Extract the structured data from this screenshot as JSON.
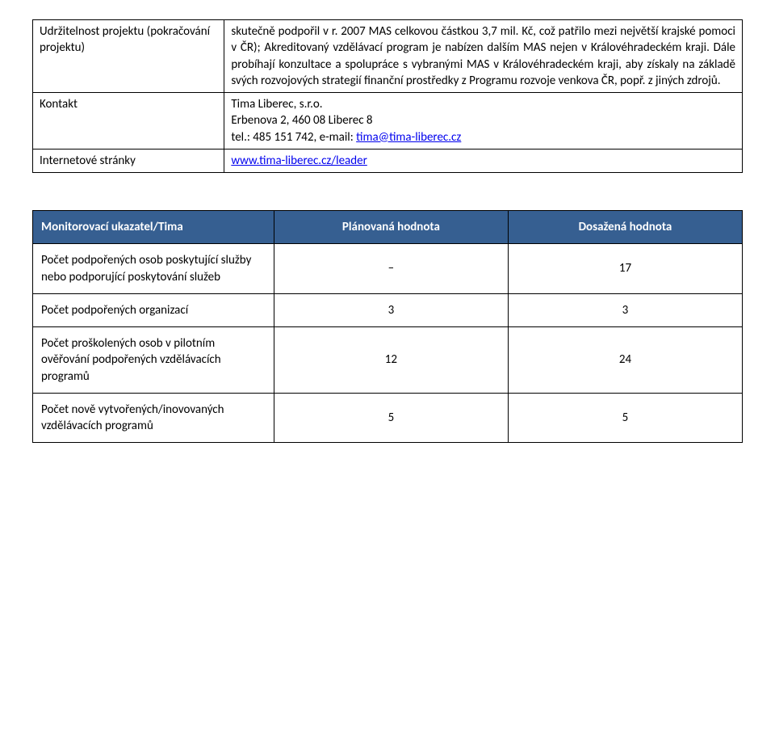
{
  "table1": {
    "rows": [
      {
        "label": "Udržitelnost projektu (pokračování projektu)",
        "value_html": "skutečně podpořil v r. 2007 MAS celkovou částkou 3,7 mil. Kč, což patřilo mezi největší krajské pomoci v ČR);\nAkreditovaný vzdělávací program je nabízen dalším MAS nejen v Královéhradeckém kraji.\nDále probíhají konzultace a spolupráce s vybranými MAS v Královéhradeckém kraji, aby získaly na základě svých rozvojových strategií finanční prostředky z Programu rozvoje venkova ČR, popř. z jiných zdrojů."
      },
      {
        "label": "Kontakt",
        "value_lines": [
          "Tima Liberec, s.r.o.",
          "Erbenova 2, 460 08 Liberec 8"
        ],
        "value_line_prefix": "tel.: 485 151 742, e-mail: ",
        "value_link_text": "tima@tima-liberec.cz",
        "value_link_href": "mailto:tima@tima-liberec.cz"
      },
      {
        "label": "Internetové stránky",
        "link_text": "www.tima-liberec.cz/leader",
        "link_href": "http://www.tima-liberec.cz/leader"
      }
    ]
  },
  "table2": {
    "header": [
      "Monitorovací ukazatel/Tima",
      "Plánovaná hodnota",
      "Dosažená hodnota"
    ],
    "header_bg": "#365f91",
    "header_fg": "#ffffff",
    "rows": [
      {
        "label": "Počet podpořených osob poskytující služby nebo podporující poskytování služeb",
        "planned": "–",
        "achieved": "17"
      },
      {
        "label": "Počet podpořených organizací",
        "planned": "3",
        "achieved": "3"
      },
      {
        "label": "Počet proškolených osob v pilotním ověřování podpořených vzdělávacích programů",
        "planned": "12",
        "achieved": "24"
      },
      {
        "label": "Počet nově vytvořených/inovovaných vzdělávacích programů",
        "planned": "5",
        "achieved": "5"
      }
    ]
  }
}
